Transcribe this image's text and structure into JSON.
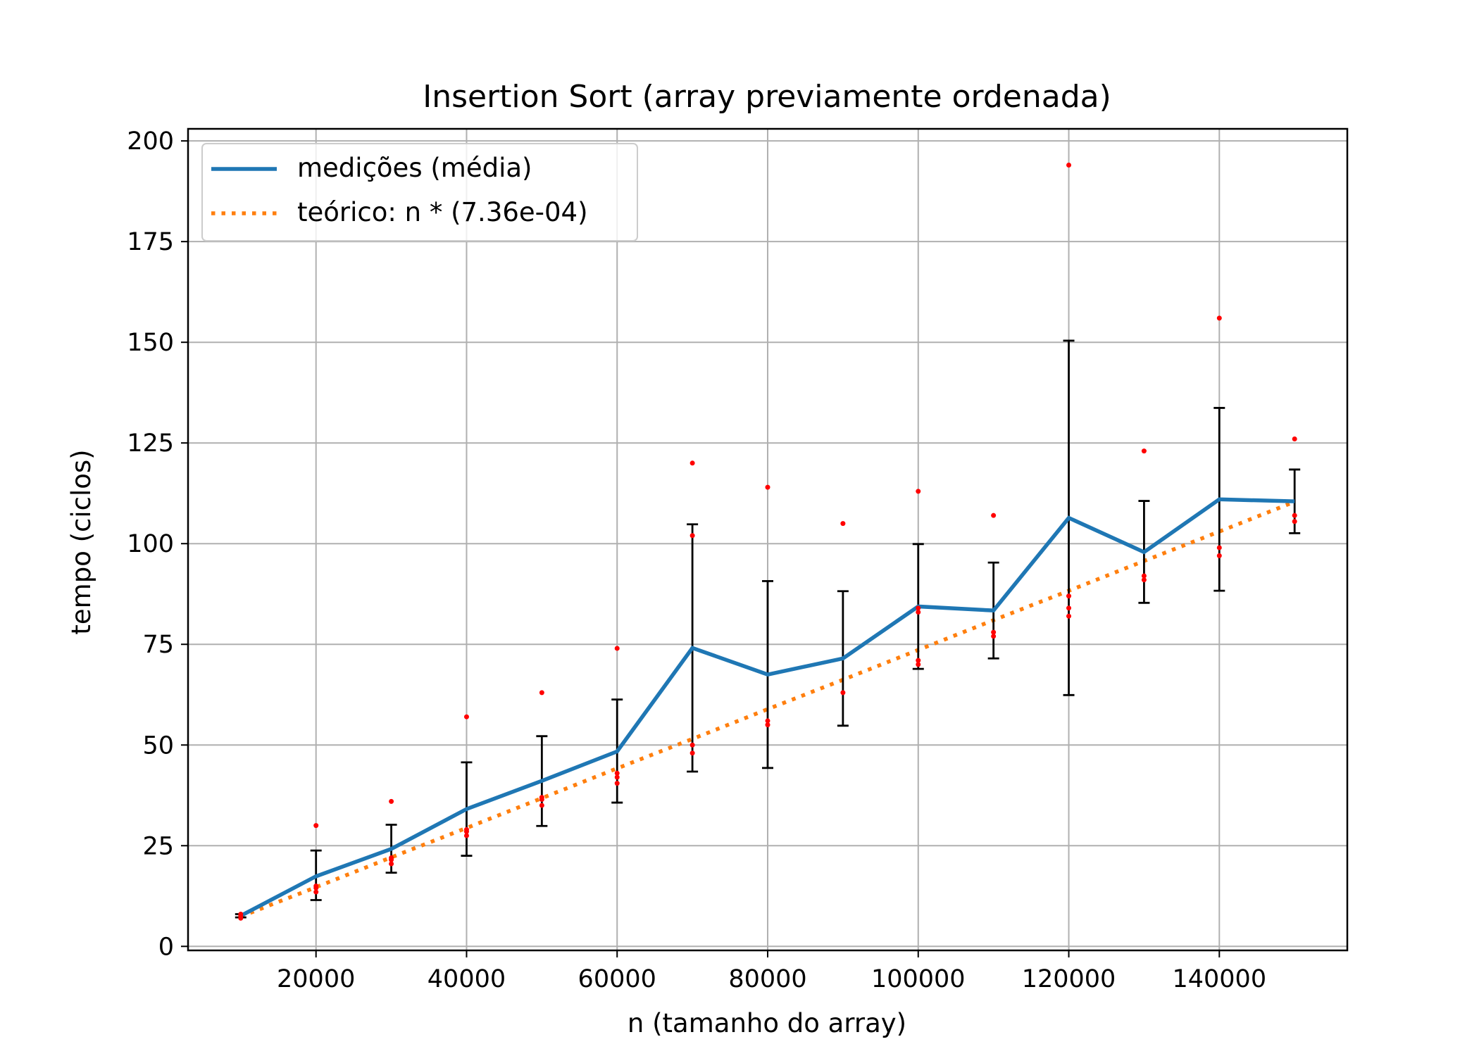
{
  "chart_data": {
    "type": "line",
    "title": "Insertion Sort (array previamente ordenada)",
    "xlabel": "n (tamanho do array)",
    "ylabel": "tempo (ciclos)",
    "xlim": [
      3000,
      157000
    ],
    "ylim": [
      -1,
      203
    ],
    "xticks": [
      20000,
      40000,
      60000,
      80000,
      100000,
      120000,
      140000
    ],
    "yticks": [
      0,
      25,
      50,
      75,
      100,
      125,
      150,
      175,
      200
    ],
    "grid": true,
    "legend_position": "top-left",
    "colors": {
      "mean": "#1f77b4",
      "theory": "#ff7f0e",
      "samples": "#ff0000",
      "errorbars": "#000000"
    },
    "x": [
      10000,
      20000,
      30000,
      40000,
      50000,
      60000,
      70000,
      80000,
      90000,
      100000,
      110000,
      120000,
      130000,
      140000,
      150000
    ],
    "series": [
      {
        "name": "medições (média)",
        "style": "solid",
        "values": [
          7.6,
          17.4,
          24.2,
          34.1,
          41.1,
          48.4,
          74.1,
          67.5,
          71.5,
          84.4,
          83.4,
          106.4,
          97.9,
          111.0,
          110.5
        ],
        "error_low": [
          7.2,
          11.5,
          18.3,
          22.5,
          29.9,
          35.7,
          43.4,
          44.3,
          54.8,
          68.9,
          71.5,
          62.4,
          85.3,
          88.3,
          102.6
        ],
        "error_high": [
          8.0,
          23.8,
          30.2,
          45.7,
          52.2,
          61.3,
          104.8,
          90.7,
          88.2,
          99.9,
          95.3,
          150.4,
          110.6,
          133.7,
          118.4
        ]
      },
      {
        "name": "teórico: n * (7.36e-04)",
        "style": "dotted",
        "values": [
          7.4,
          14.7,
          22.1,
          29.4,
          36.8,
          44.2,
          51.5,
          58.9,
          66.2,
          73.6,
          81.0,
          88.3,
          95.7,
          103.0,
          110.4
        ]
      }
    ],
    "samples": [
      {
        "x": 10000,
        "y": [
          7,
          7.5,
          8
        ]
      },
      {
        "x": 20000,
        "y": [
          13.5,
          14.5,
          15,
          30
        ]
      },
      {
        "x": 30000,
        "y": [
          20.5,
          21.5,
          22,
          36
        ]
      },
      {
        "x": 40000,
        "y": [
          27.5,
          28.5,
          29,
          57
        ]
      },
      {
        "x": 50000,
        "y": [
          35,
          36.5,
          37,
          63
        ]
      },
      {
        "x": 60000,
        "y": [
          40.5,
          42,
          43,
          74
        ]
      },
      {
        "x": 70000,
        "y": [
          48,
          50,
          102,
          120
        ]
      },
      {
        "x": 80000,
        "y": [
          55,
          56,
          114
        ]
      },
      {
        "x": 90000,
        "y": [
          63,
          105
        ]
      },
      {
        "x": 100000,
        "y": [
          70,
          71,
          83,
          84,
          113
        ]
      },
      {
        "x": 110000,
        "y": [
          77,
          78,
          107
        ]
      },
      {
        "x": 120000,
        "y": [
          82,
          84,
          87,
          194
        ]
      },
      {
        "x": 130000,
        "y": [
          91,
          92,
          123
        ]
      },
      {
        "x": 140000,
        "y": [
          97,
          99,
          156
        ]
      },
      {
        "x": 150000,
        "y": [
          105.5,
          107,
          126
        ]
      }
    ]
  }
}
